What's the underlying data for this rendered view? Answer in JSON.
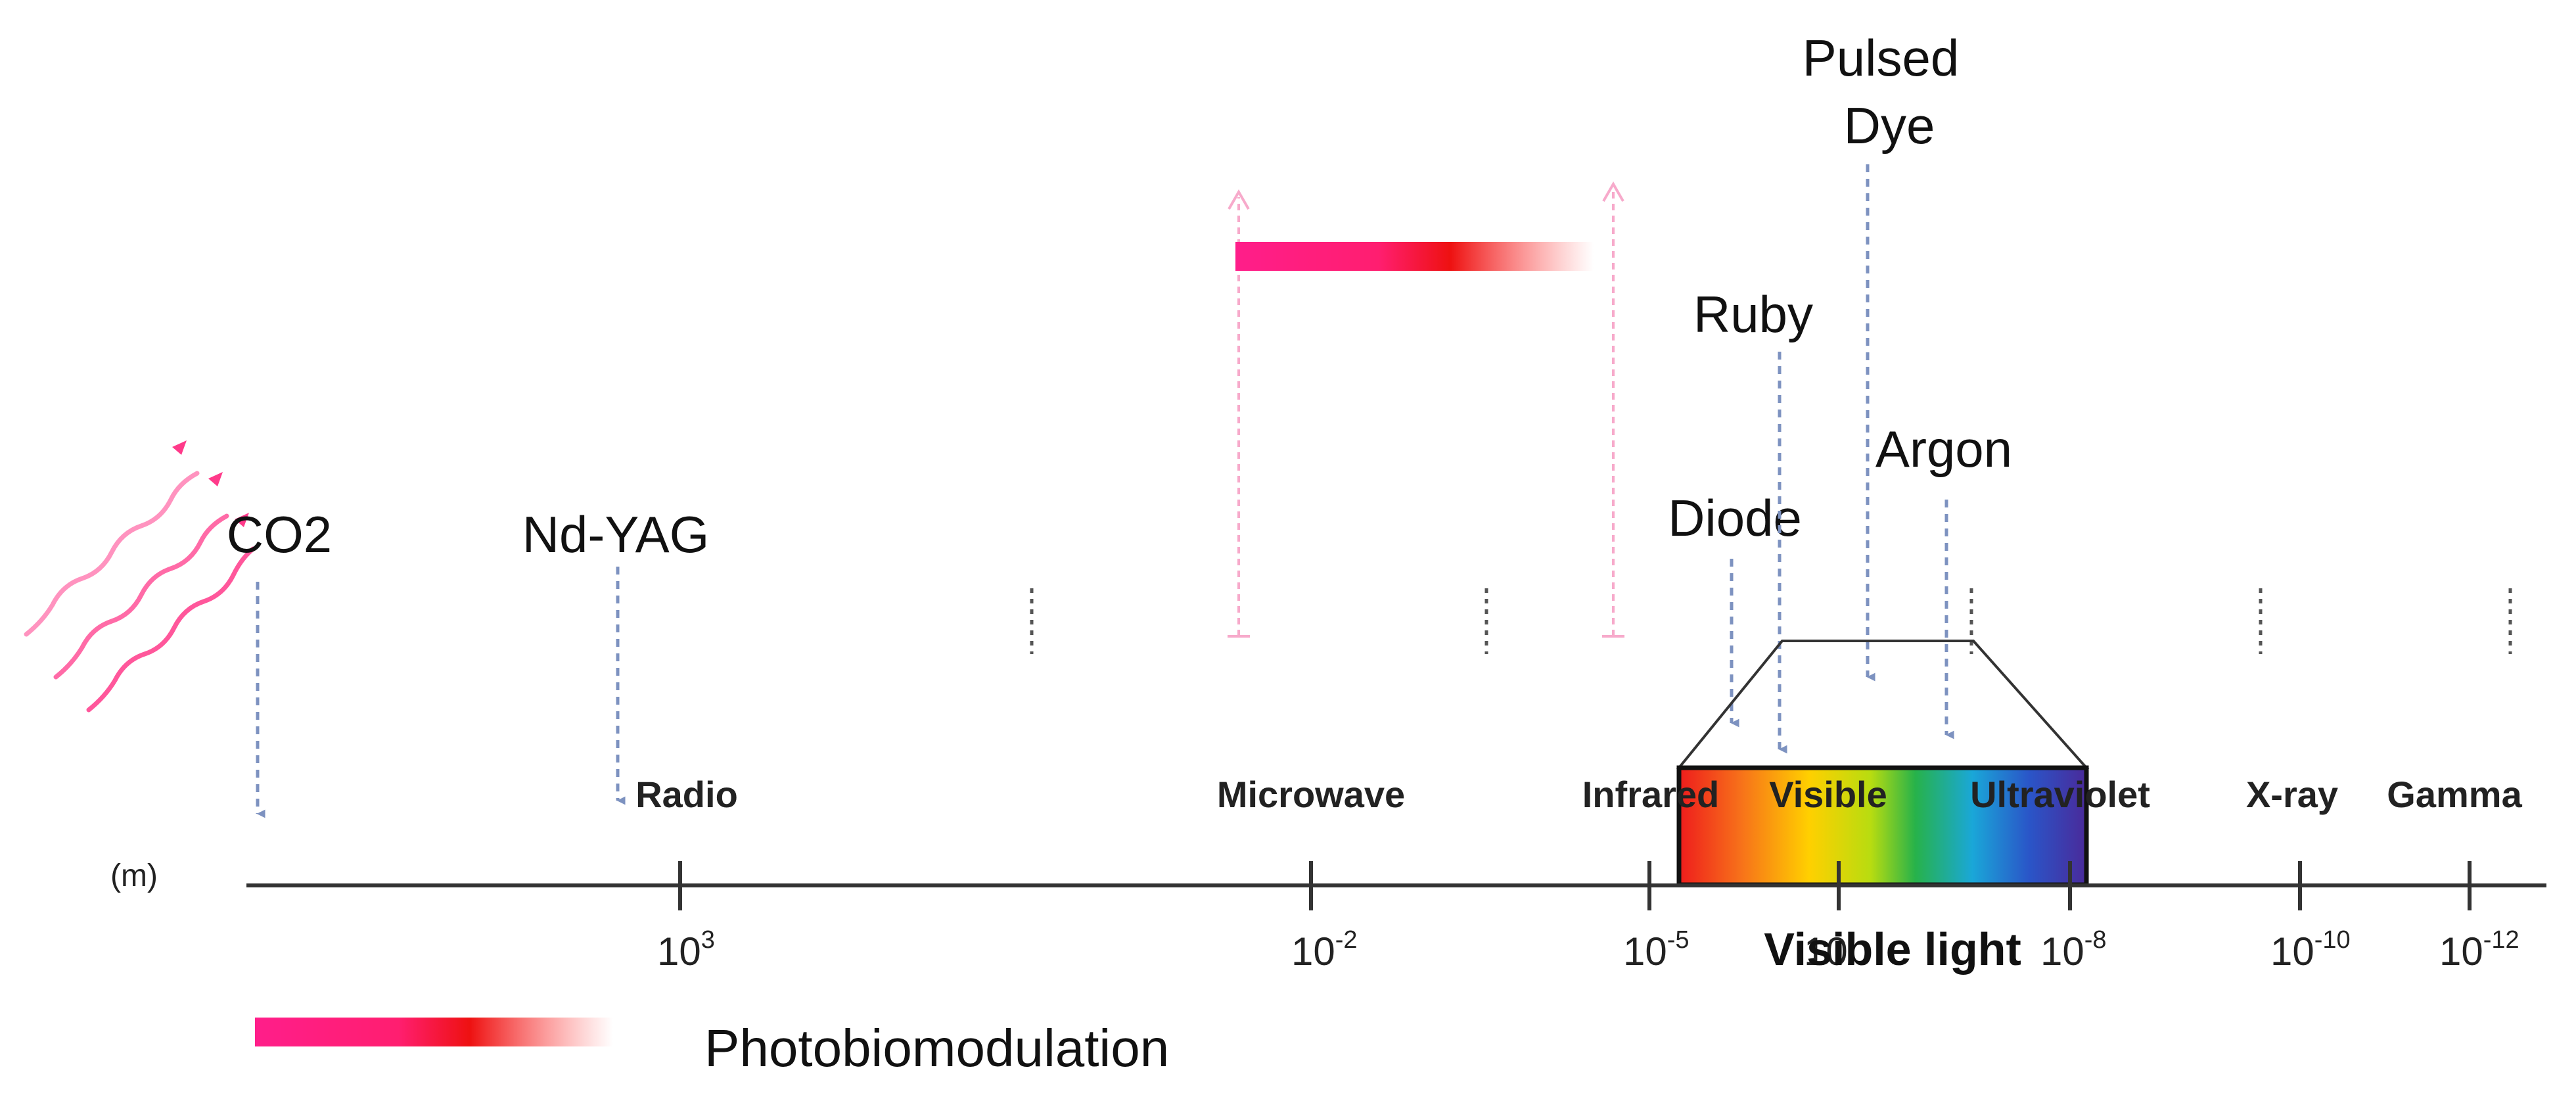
{
  "colors": {
    "axis": "#333333",
    "arrow_blue": "#7d92c0",
    "pink": "#ff1e8a",
    "pink_light": "#f7aacb",
    "red": "#ee1111",
    "gray_dots": "#555555"
  },
  "unit_label": "(m)",
  "ticks": [
    {
      "base": "10",
      "exp": "3"
    },
    {
      "base": "10",
      "exp": "-2"
    },
    {
      "base": "10",
      "exp": "-5"
    },
    {
      "base": "10",
      "exp": "-8"
    },
    {
      "base": "10",
      "exp": "-10"
    },
    {
      "base": "10",
      "exp": "-12"
    }
  ],
  "bands": [
    "Radio",
    "Microwave",
    "Infrared",
    "Visible",
    "Ultraviolet",
    "X-ray",
    "Gamma"
  ],
  "visible_caption": "Visible light",
  "visible_caption_overlap": "10",
  "lasers": [
    {
      "lines": [
        "CO2"
      ]
    },
    {
      "lines": [
        "Nd-YAG"
      ]
    },
    {
      "lines": [
        "Diode"
      ]
    },
    {
      "lines": [
        "Ruby"
      ]
    },
    {
      "lines": [
        "Pulsed",
        "Dye"
      ]
    },
    {
      "lines": [
        "Argon"
      ]
    }
  ],
  "legend": {
    "label": "Photobiomodulation"
  },
  "icons": {
    "radiation": "wavy-radiation-arrows-icon"
  }
}
